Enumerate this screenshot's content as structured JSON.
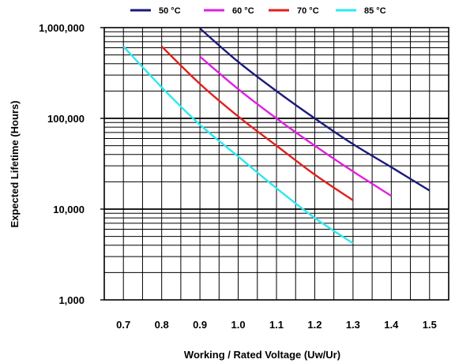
{
  "chart_data": {
    "type": "line",
    "xlabel": "Working / Rated Voltage (Uw/Ur)",
    "ylabel": "Expected Lifetime (Hours)",
    "x_ticks": [
      0.7,
      0.8,
      0.9,
      1.0,
      1.1,
      1.2,
      1.3,
      1.4,
      1.5
    ],
    "x_tick_labels": [
      "0.7",
      "0.8",
      "0.9",
      "1.0",
      "1.1",
      "1.2",
      "1.3",
      "1.4",
      "1.5"
    ],
    "y_ticks": [
      1000,
      10000,
      100000,
      1000000
    ],
    "y_tick_labels": [
      "1,000",
      "10,000",
      "100,000",
      "1,000,000"
    ],
    "xlim": [
      0.65,
      1.55
    ],
    "ylim": [
      1000,
      1000000
    ],
    "y_scale": "log",
    "grid": true,
    "legend_position": "top",
    "series": [
      {
        "name": "50 °C",
        "color": "#1a1a7a",
        "x": [
          0.9,
          1.0,
          1.1,
          1.2,
          1.3,
          1.4,
          1.5
        ],
        "y": [
          980000,
          420000,
          200000,
          100000,
          52000,
          29000,
          16000
        ]
      },
      {
        "name": "60 °C",
        "color": "#e020e0",
        "x": [
          0.9,
          1.0,
          1.1,
          1.2,
          1.3,
          1.4
        ],
        "y": [
          480000,
          210000,
          100000,
          50000,
          26000,
          14000
        ]
      },
      {
        "name": "70 °C",
        "color": "#e0201e",
        "x": [
          0.8,
          0.9,
          1.0,
          1.1,
          1.2,
          1.3
        ],
        "y": [
          620000,
          240000,
          105000,
          50000,
          24000,
          12500
        ]
      },
      {
        "name": "85 °C",
        "color": "#2ee8f0",
        "x": [
          0.7,
          0.8,
          0.9,
          1.0,
          1.1,
          1.2,
          1.3
        ],
        "y": [
          620000,
          220000,
          85000,
          38000,
          17000,
          8000,
          4200
        ]
      }
    ]
  }
}
